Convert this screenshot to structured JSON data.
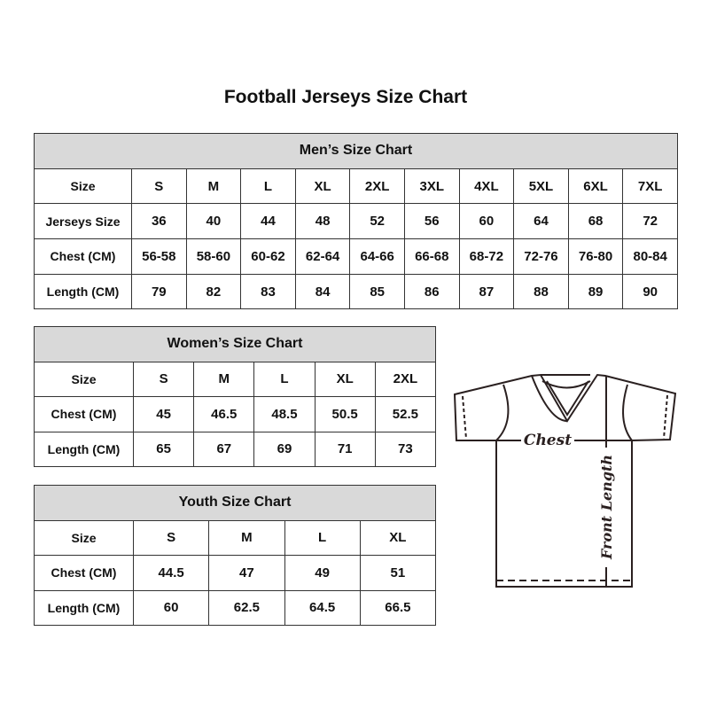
{
  "title": "Football Jerseys Size Chart",
  "men": {
    "caption": "Men’s Size Chart",
    "rows": [
      {
        "label": "Size",
        "values": [
          "S",
          "M",
          "L",
          "XL",
          "2XL",
          "3XL",
          "4XL",
          "5XL",
          "6XL",
          "7XL"
        ]
      },
      {
        "label": "Jerseys Size",
        "values": [
          "36",
          "40",
          "44",
          "48",
          "52",
          "56",
          "60",
          "64",
          "68",
          "72"
        ]
      },
      {
        "label": "Chest (CM)",
        "values": [
          "56-58",
          "58-60",
          "60-62",
          "62-64",
          "64-66",
          "66-68",
          "68-72",
          "72-76",
          "76-80",
          "80-84"
        ]
      },
      {
        "label": "Length (CM)",
        "values": [
          "79",
          "82",
          "83",
          "84",
          "85",
          "86",
          "87",
          "88",
          "89",
          "90"
        ]
      }
    ]
  },
  "women": {
    "caption": "Women’s Size Chart",
    "rows": [
      {
        "label": "Size",
        "values": [
          "S",
          "M",
          "L",
          "XL",
          "2XL"
        ]
      },
      {
        "label": "Chest (CM)",
        "values": [
          "45",
          "46.5",
          "48.5",
          "50.5",
          "52.5"
        ]
      },
      {
        "label": "Length (CM)",
        "values": [
          "65",
          "67",
          "69",
          "71",
          "73"
        ]
      }
    ]
  },
  "youth": {
    "caption": "Youth Size Chart",
    "rows": [
      {
        "label": "Size",
        "values": [
          "S",
          "M",
          "L",
          "XL"
        ]
      },
      {
        "label": "Chest (CM)",
        "values": [
          "44.5",
          "47",
          "49",
          "51"
        ]
      },
      {
        "label": "Length (CM)",
        "values": [
          "60",
          "62.5",
          "64.5",
          "66.5"
        ]
      }
    ]
  },
  "diagram": {
    "chest_label": "Chest",
    "length_label": "Front Length"
  }
}
